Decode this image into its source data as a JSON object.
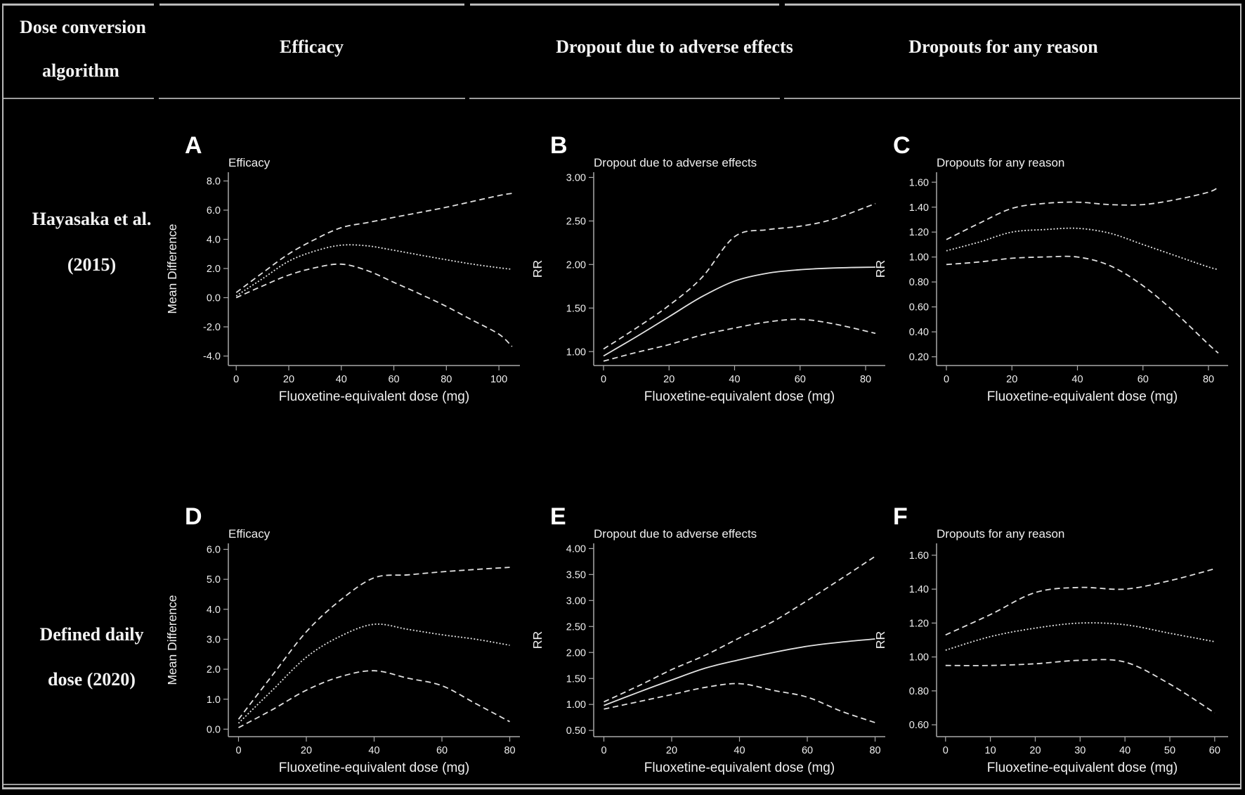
{
  "table": {
    "header": {
      "col1_line1": "Dose conversion",
      "col1_line2": "algorithm",
      "col2": "Efficacy",
      "col3": "Dropout due to adverse effects",
      "col4": "Dropouts for any reason"
    },
    "rows": [
      {
        "label_line1": "Hayasaka et al.",
        "label_line2": "(2015)"
      },
      {
        "label_line1": "Defined daily",
        "label_line2": "dose (2020)"
      }
    ]
  },
  "colors": {
    "background": "#000000",
    "border": "#b9b9b9",
    "axis": "#a9a9a9",
    "line": "#e2e2e2",
    "text": "#efefef"
  },
  "chart_data": [
    {
      "panel": "A",
      "type": "line",
      "title": "Efficacy",
      "xlabel": "Fluoxetine-equivalent dose (mg)",
      "ylabel": "Mean Difference",
      "xlim": [
        -3,
        108
      ],
      "ylim": [
        -4.65,
        8.6
      ],
      "xticks": [
        0,
        20,
        40,
        60,
        80,
        100
      ],
      "ytick_values": [
        8,
        6,
        4,
        2,
        0,
        -2,
        -4
      ],
      "ytick_labels": [
        "8.0",
        "6.0",
        "4.0",
        "2.0",
        "0.0",
        "-2.0",
        "-4.0"
      ],
      "x": [
        0,
        10,
        20,
        30,
        40,
        50,
        60,
        70,
        80,
        90,
        100,
        105
      ],
      "series": [
        {
          "name": "upper_95ci",
          "style": "dashed",
          "values": [
            0.35,
            1.7,
            3.0,
            4.0,
            4.8,
            5.15,
            5.5,
            5.85,
            6.2,
            6.6,
            7.0,
            7.15
          ]
        },
        {
          "name": "estimate",
          "style": "dotted",
          "values": [
            0.12,
            1.3,
            2.5,
            3.2,
            3.6,
            3.55,
            3.25,
            2.92,
            2.6,
            2.3,
            2.05,
            1.95
          ]
        },
        {
          "name": "lower_95ci",
          "style": "dashed",
          "values": [
            0.0,
            0.8,
            1.55,
            2.05,
            2.3,
            1.85,
            1.05,
            0.25,
            -0.6,
            -1.55,
            -2.5,
            -3.35
          ]
        }
      ]
    },
    {
      "panel": "B",
      "type": "line",
      "title": "Dropout due to adverse effects",
      "xlabel": "Fluoxetine-equivalent dose (mg)",
      "ylabel": "RR",
      "xlim": [
        -3,
        86
      ],
      "ylim": [
        0.84,
        3.06
      ],
      "xticks": [
        0,
        20,
        40,
        60,
        80
      ],
      "ytick_values": [
        3.0,
        2.5,
        2.0,
        1.5,
        1.0
      ],
      "ytick_labels": [
        "3.00",
        "2.50",
        "2.00",
        "1.50",
        "1.00"
      ],
      "x": [
        0,
        10,
        20,
        30,
        40,
        50,
        60,
        70,
        83
      ],
      "series": [
        {
          "name": "upper_95ci",
          "style": "dashed",
          "values": [
            1.03,
            1.27,
            1.53,
            1.85,
            2.32,
            2.4,
            2.44,
            2.52,
            2.7
          ]
        },
        {
          "name": "estimate",
          "style": "solid",
          "values": [
            0.95,
            1.17,
            1.4,
            1.63,
            1.81,
            1.9,
            1.94,
            1.96,
            1.97
          ]
        },
        {
          "name": "lower_95ci",
          "style": "dashed",
          "values": [
            0.89,
            0.99,
            1.08,
            1.19,
            1.27,
            1.34,
            1.37,
            1.32,
            1.21
          ]
        }
      ]
    },
    {
      "panel": "C",
      "type": "line",
      "title": "Dropouts for any reason",
      "xlabel": "Fluoxetine-equivalent dose (mg)",
      "ylabel": "RR",
      "xlim": [
        -3,
        86
      ],
      "ylim": [
        0.13,
        1.68
      ],
      "xticks": [
        0,
        20,
        40,
        60,
        80
      ],
      "ytick_values": [
        1.6,
        1.4,
        1.2,
        1.0,
        0.8,
        0.6,
        0.4,
        0.2
      ],
      "ytick_labels": [
        "1.60",
        "1.40",
        "1.20",
        "1.00",
        "0.80",
        "0.60",
        "0.40",
        "0.20"
      ],
      "x": [
        0,
        10,
        20,
        30,
        40,
        50,
        60,
        70,
        80,
        83
      ],
      "series": [
        {
          "name": "upper_95ci",
          "style": "dashed",
          "values": [
            1.14,
            1.27,
            1.39,
            1.43,
            1.44,
            1.42,
            1.42,
            1.46,
            1.52,
            1.56
          ]
        },
        {
          "name": "estimate",
          "style": "dotted",
          "values": [
            1.05,
            1.12,
            1.2,
            1.22,
            1.23,
            1.19,
            1.1,
            1.01,
            0.92,
            0.9
          ]
        },
        {
          "name": "lower_95ci",
          "style": "dashed",
          "values": [
            0.94,
            0.96,
            0.99,
            1.0,
            1.0,
            0.93,
            0.77,
            0.55,
            0.3,
            0.23
          ]
        }
      ]
    },
    {
      "panel": "D",
      "type": "line",
      "title": "Efficacy",
      "xlabel": "Fluoxetine-equivalent dose (mg)",
      "ylabel": "Mean Difference",
      "xlim": [
        -3,
        83
      ],
      "ylim": [
        -0.25,
        6.2
      ],
      "xticks": [
        0,
        20,
        40,
        60,
        80
      ],
      "ytick_values": [
        6,
        5,
        4,
        3,
        2,
        1,
        0
      ],
      "ytick_labels": [
        "6.0",
        "5.0",
        "4.0",
        "3.0",
        "2.0",
        "1.0",
        "0.0"
      ],
      "x": [
        0,
        10,
        20,
        30,
        40,
        50,
        60,
        70,
        80
      ],
      "series": [
        {
          "name": "upper_95ci",
          "style": "dashed",
          "values": [
            0.33,
            1.8,
            3.25,
            4.3,
            5.05,
            5.15,
            5.25,
            5.33,
            5.4
          ]
        },
        {
          "name": "estimate",
          "style": "dotted",
          "values": [
            0.2,
            1.3,
            2.4,
            3.1,
            3.5,
            3.33,
            3.15,
            3.0,
            2.8
          ]
        },
        {
          "name": "lower_95ci",
          "style": "dashed",
          "values": [
            0.05,
            0.65,
            1.3,
            1.75,
            1.95,
            1.7,
            1.45,
            0.85,
            0.25
          ]
        }
      ]
    },
    {
      "panel": "E",
      "type": "line",
      "title": "Dropout due to adverse effects",
      "xlabel": "Fluoxetine-equivalent dose (mg)",
      "ylabel": "RR",
      "xlim": [
        -3,
        83
      ],
      "ylim": [
        0.38,
        4.1
      ],
      "xticks": [
        0,
        20,
        40,
        60,
        80
      ],
      "ytick_values": [
        4.0,
        3.5,
        3.0,
        2.5,
        2.0,
        1.5,
        1.0,
        0.5
      ],
      "ytick_labels": [
        "4.00",
        "3.50",
        "3.00",
        "2.50",
        "2.00",
        "1.50",
        "1.00",
        "0.50"
      ],
      "x": [
        0,
        10,
        20,
        30,
        40,
        50,
        60,
        70,
        80
      ],
      "series": [
        {
          "name": "upper_95ci",
          "style": "dashed",
          "values": [
            1.05,
            1.35,
            1.67,
            1.95,
            2.28,
            2.6,
            3.0,
            3.42,
            3.85
          ]
        },
        {
          "name": "estimate",
          "style": "solid",
          "values": [
            0.98,
            1.23,
            1.47,
            1.7,
            1.86,
            2.0,
            2.12,
            2.2,
            2.26
          ]
        },
        {
          "name": "lower_95ci",
          "style": "dashed",
          "values": [
            0.91,
            1.05,
            1.19,
            1.33,
            1.4,
            1.27,
            1.14,
            0.87,
            0.65
          ]
        }
      ]
    },
    {
      "panel": "F",
      "type": "line",
      "title": "Dropouts for any reason",
      "xlabel": "Fluoxetine-equivalent dose (mg)",
      "ylabel": "RR",
      "xlim": [
        -2,
        63
      ],
      "ylim": [
        0.53,
        1.67
      ],
      "xticks": [
        0,
        10,
        20,
        30,
        40,
        50,
        60
      ],
      "ytick_values": [
        1.6,
        1.4,
        1.2,
        1.0,
        0.8,
        0.6
      ],
      "ytick_labels": [
        "1.60",
        "1.40",
        "1.20",
        "1.00",
        "0.80",
        "0.60"
      ],
      "x": [
        0,
        10,
        20,
        30,
        40,
        50,
        60
      ],
      "series": [
        {
          "name": "upper_95ci",
          "style": "dashed",
          "values": [
            1.13,
            1.25,
            1.38,
            1.41,
            1.4,
            1.45,
            1.52
          ]
        },
        {
          "name": "estimate",
          "style": "dotted",
          "values": [
            1.04,
            1.12,
            1.17,
            1.2,
            1.19,
            1.14,
            1.09
          ]
        },
        {
          "name": "lower_95ci",
          "style": "dashed",
          "values": [
            0.95,
            0.95,
            0.96,
            0.98,
            0.97,
            0.84,
            0.67
          ]
        }
      ]
    }
  ]
}
